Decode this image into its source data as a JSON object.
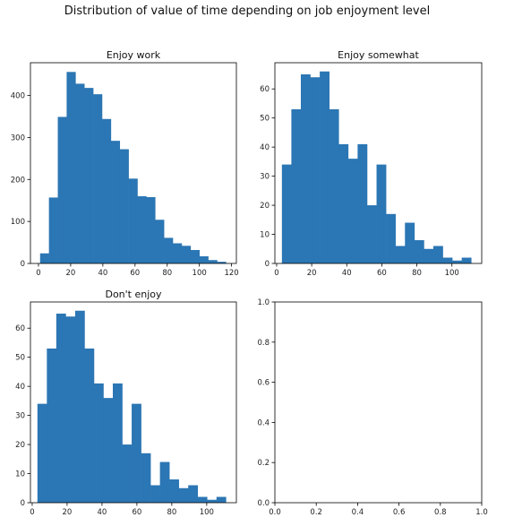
{
  "figure": {
    "suptitle": "Distribution of value of time depending on job enjoyment level"
  },
  "colors": {
    "bar": "#2b76b4",
    "axis": "#000000",
    "text": "#222222"
  },
  "chart_data": [
    {
      "type": "bar",
      "title": "Enjoy work",
      "xlabel": "",
      "ylabel": "",
      "xlim": [
        -5,
        123
      ],
      "ylim": [
        0,
        478
      ],
      "xticks": [
        0,
        20,
        40,
        60,
        80,
        100,
        120
      ],
      "yticks": [
        0,
        100,
        200,
        300,
        400
      ],
      "bin_edges": [
        1.0,
        6.5,
        12.0,
        17.5,
        23.0,
        28.5,
        34.0,
        39.5,
        45.0,
        50.5,
        56.0,
        61.5,
        67.0,
        72.5,
        78.0,
        83.5,
        89.0,
        94.5,
        100.0,
        105.5,
        111.0,
        116.5
      ],
      "values": [
        24,
        157,
        349,
        456,
        428,
        418,
        403,
        344,
        292,
        272,
        202,
        160,
        158,
        104,
        61,
        48,
        42,
        32,
        17,
        8,
        4
      ]
    },
    {
      "type": "bar",
      "title": "Enjoy somewhat",
      "xlabel": "",
      "ylabel": "",
      "xlim": [
        -1,
        117
      ],
      "ylim": [
        0,
        69
      ],
      "xticks": [
        0,
        20,
        40,
        60,
        80,
        100
      ],
      "yticks": [
        0,
        10,
        20,
        30,
        40,
        50,
        60
      ],
      "bin_edges": [
        3.0,
        8.4,
        13.8,
        19.2,
        24.6,
        30.0,
        35.4,
        40.8,
        46.2,
        51.6,
        57.0,
        62.4,
        67.8,
        73.2,
        78.6,
        84.0,
        89.4,
        94.8,
        100.2,
        105.6,
        111.0
      ],
      "values": [
        34,
        53,
        65,
        64,
        66,
        53,
        41,
        36,
        41,
        20,
        34,
        17,
        6,
        14,
        8,
        5,
        6,
        2,
        1,
        2
      ]
    },
    {
      "type": "bar",
      "title": "Don't enjoy",
      "xlabel": "",
      "ylabel": "",
      "xlim": [
        -1,
        117
      ],
      "ylim": [
        0,
        69
      ],
      "xticks": [
        0,
        20,
        40,
        60,
        80,
        100
      ],
      "yticks": [
        0,
        10,
        20,
        30,
        40,
        50,
        60
      ],
      "bin_edges": [
        3.0,
        8.4,
        13.8,
        19.2,
        24.6,
        30.0,
        35.4,
        40.8,
        46.2,
        51.6,
        57.0,
        62.4,
        67.8,
        73.2,
        78.6,
        84.0,
        89.4,
        94.8,
        100.2,
        105.6,
        111.0
      ],
      "values": [
        34,
        53,
        65,
        64,
        66,
        53,
        41,
        36,
        41,
        20,
        34,
        17,
        6,
        14,
        8,
        5,
        6,
        2,
        1,
        2
      ]
    },
    {
      "type": "bar",
      "title": "",
      "xlabel": "",
      "ylabel": "",
      "xlim": [
        0,
        1
      ],
      "ylim": [
        0,
        1
      ],
      "xticks": [
        0.0,
        0.2,
        0.4,
        0.6,
        0.8,
        1.0
      ],
      "yticks": [
        0.0,
        0.2,
        0.4,
        0.6,
        0.8,
        1.0
      ],
      "tick_format": "fixed1",
      "bin_edges": [],
      "values": []
    }
  ]
}
